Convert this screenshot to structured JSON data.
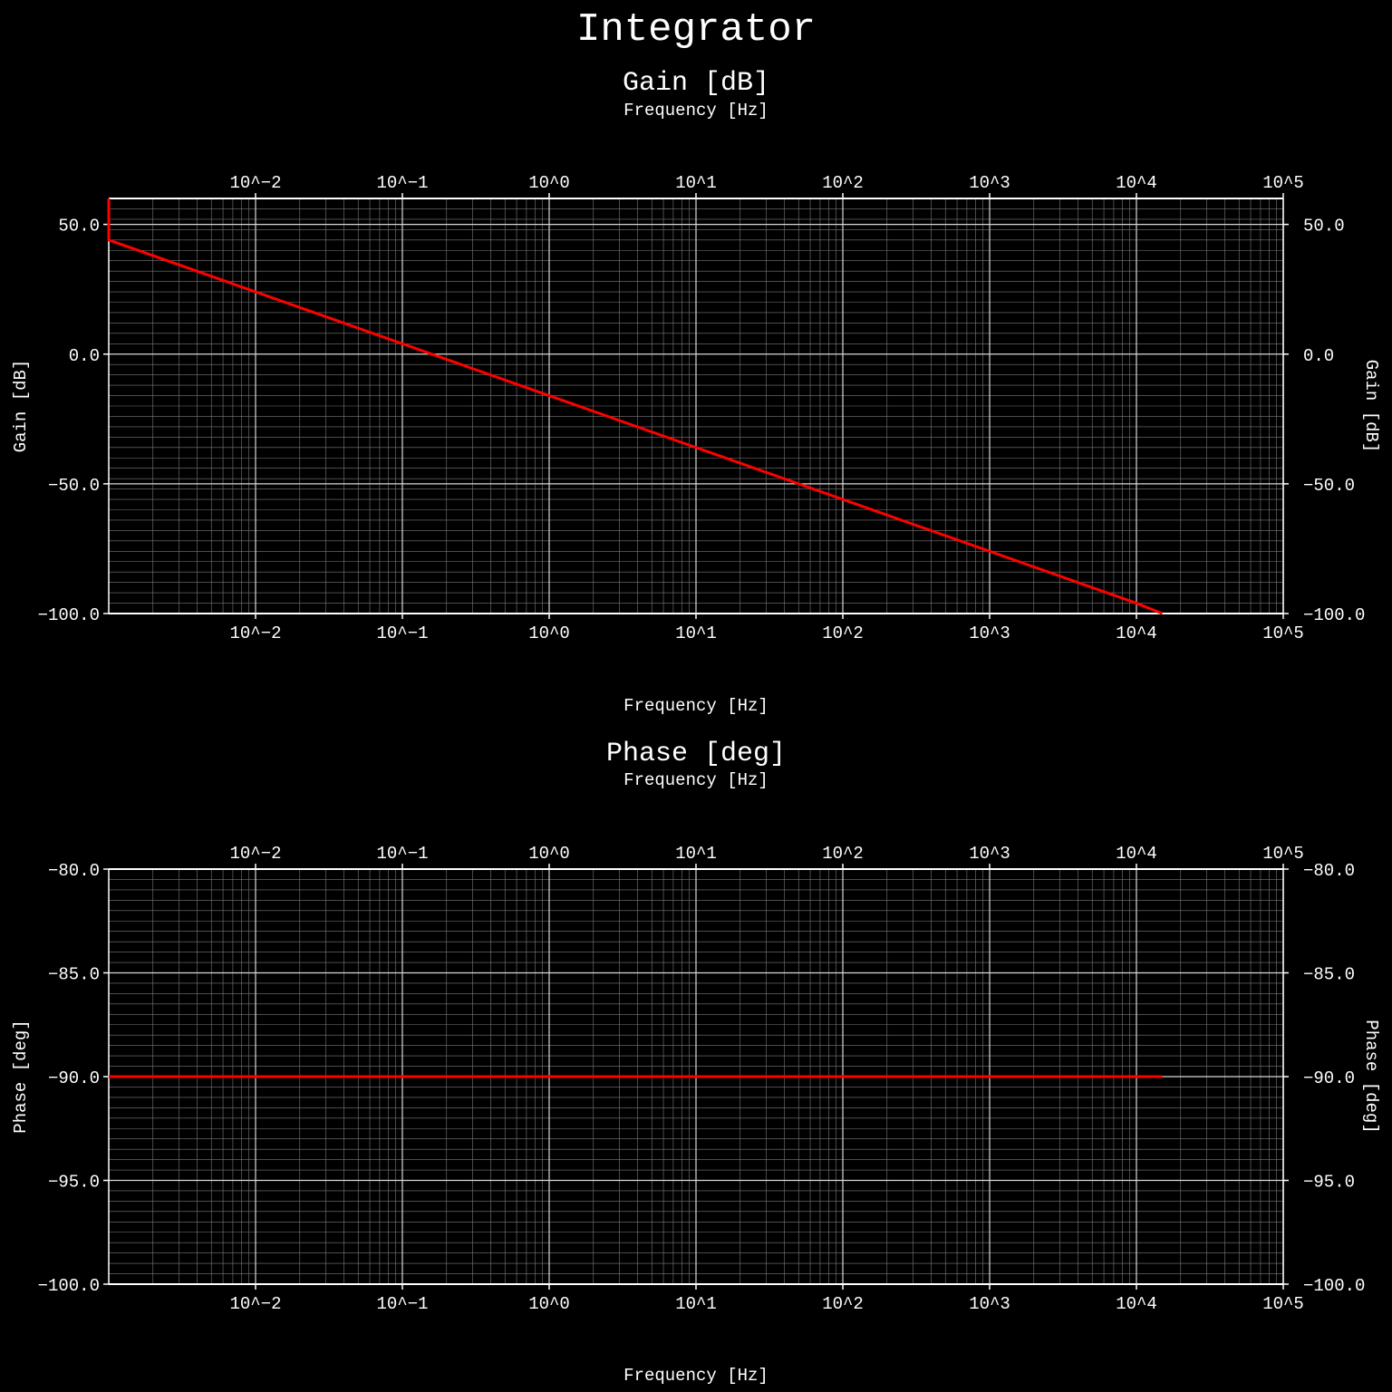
{
  "figure": {
    "title": "Integrator",
    "background": "#000000",
    "foreground": "#ffffff",
    "trace_color": "#ff0000"
  },
  "chart_data": [
    {
      "type": "line",
      "title": "Gain [dB]",
      "xlabel": "Frequency [Hz]",
      "ylabel": "Gain [dB]",
      "x_scale": "log",
      "xlim": [
        0.001,
        100000
      ],
      "ylim": [
        -100,
        60
      ],
      "x_ticks": [
        0.01,
        0.1,
        1,
        10,
        100,
        1000,
        10000,
        100000
      ],
      "x_tick_labels": [
        "10^−2",
        "10^−1",
        "10^0",
        "10^1",
        "10^2",
        "10^3",
        "10^4",
        "10^5"
      ],
      "y_ticks": [
        50,
        0,
        -50,
        -100
      ],
      "y_tick_labels": [
        "50.0",
        "0.0",
        "−50.0",
        "−100.0"
      ],
      "grid": true,
      "series": [
        {
          "x": [
            0.001,
            0.001,
            0.01,
            0.1,
            1,
            10,
            100,
            1000,
            10000,
            15000
          ],
          "y": [
            60,
            44,
            24,
            4,
            -16,
            -36,
            -56,
            -76,
            -96,
            -100
          ]
        }
      ]
    },
    {
      "type": "line",
      "title": "Phase [deg]",
      "xlabel": "Frequency [Hz]",
      "ylabel": "Phase [deg]",
      "x_scale": "log",
      "xlim": [
        0.001,
        100000
      ],
      "ylim": [
        -100,
        -80
      ],
      "x_ticks": [
        0.01,
        0.1,
        1,
        10,
        100,
        1000,
        10000,
        100000
      ],
      "x_tick_labels": [
        "10^−2",
        "10^−1",
        "10^0",
        "10^1",
        "10^2",
        "10^3",
        "10^4",
        "10^5"
      ],
      "y_ticks": [
        -80,
        -85,
        -90,
        -95,
        -100
      ],
      "y_tick_labels": [
        "−80.0",
        "−85.0",
        "−90.0",
        "−95.0",
        "−100.0"
      ],
      "grid": true,
      "series": [
        {
          "x": [
            0.001,
            15000
          ],
          "y": [
            -90,
            -90
          ]
        }
      ]
    }
  ]
}
